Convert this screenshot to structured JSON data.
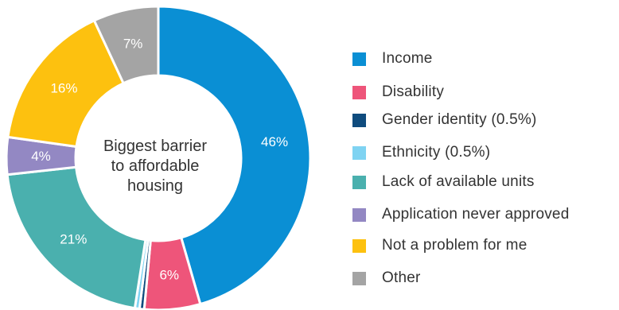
{
  "chart_data": {
    "type": "pie",
    "title": "",
    "center_label_lines": [
      "Biggest barrier",
      "to affordable",
      "housing"
    ],
    "slices": [
      {
        "name": "Income",
        "value": 46,
        "label": "46%",
        "color": "#0A8FD4"
      },
      {
        "name": "Disability",
        "value": 6,
        "label": "6%",
        "color": "#EE557A"
      },
      {
        "name": "Gender identity (0.5%)",
        "value": 0.5,
        "label": "",
        "color": "#0F4C7E"
      },
      {
        "name": "Ethnicity (0.5%)",
        "value": 0.5,
        "label": "",
        "color": "#7FD3F2"
      },
      {
        "name": "Lack of available units",
        "value": 21,
        "label": "21%",
        "color": "#4AB0AE"
      },
      {
        "name": "Application never approved",
        "value": 4,
        "label": "4%",
        "color": "#9388C3"
      },
      {
        "name": "Not a problem for me",
        "value": 16,
        "label": "16%",
        "color": "#FDC10F"
      },
      {
        "name": "Other",
        "value": 7,
        "label": "7%",
        "color": "#A4A4A4"
      }
    ],
    "legend_position": "right"
  }
}
